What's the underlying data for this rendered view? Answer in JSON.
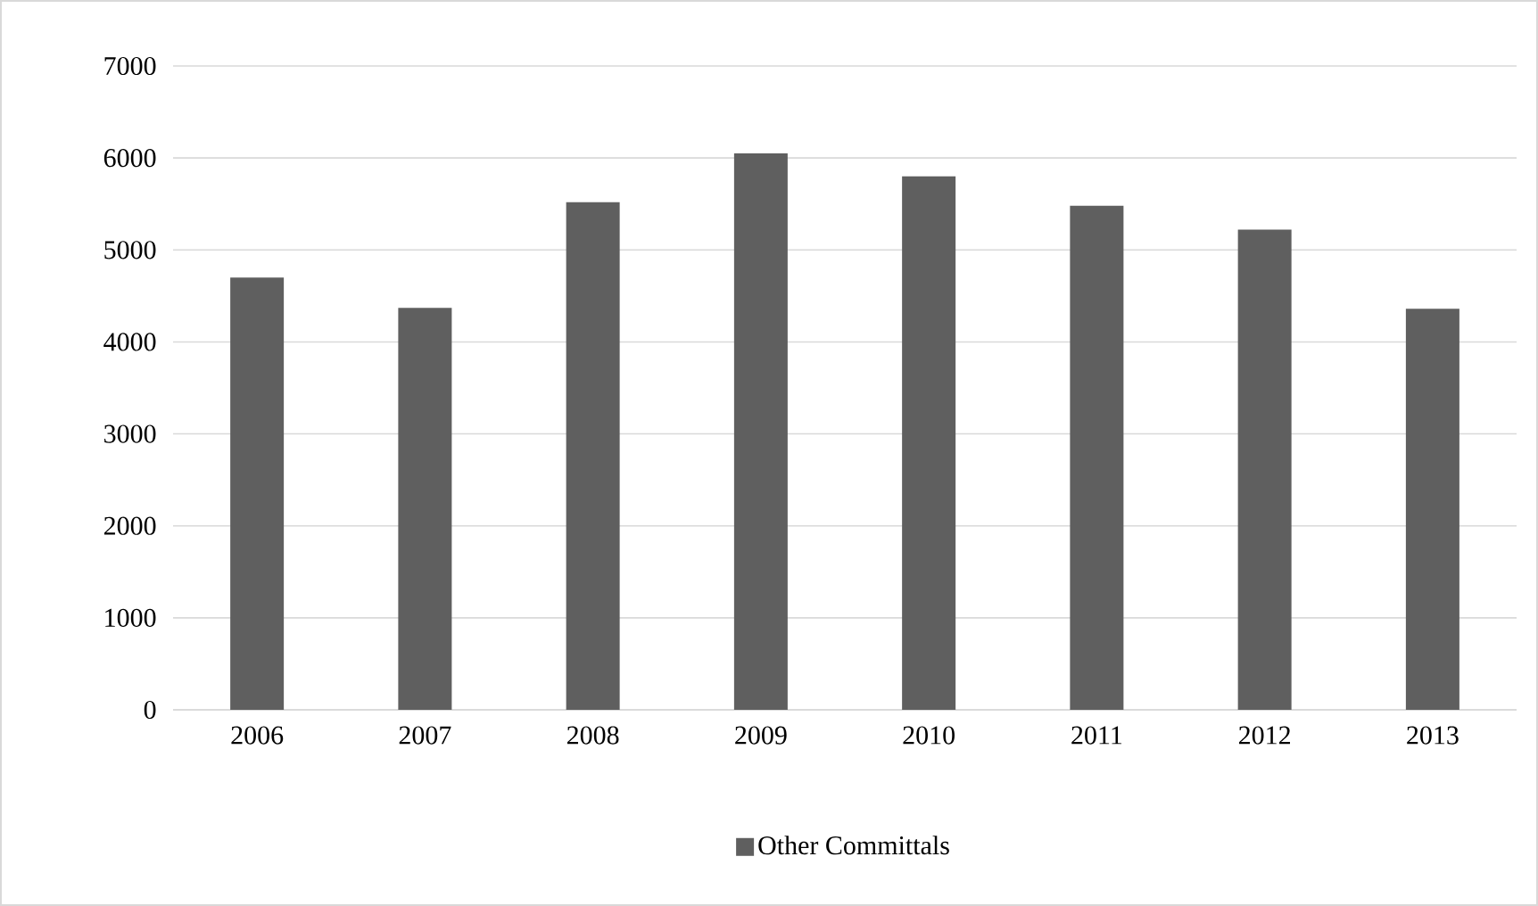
{
  "chart_data": {
    "type": "bar",
    "categories": [
      "2006",
      "2007",
      "2008",
      "2009",
      "2010",
      "2011",
      "2012",
      "2013"
    ],
    "series": [
      {
        "name": "Other Committals",
        "color": "#5f5f5f",
        "values": [
          4700,
          4370,
          5520,
          6050,
          5800,
          5480,
          5220,
          4360
        ]
      }
    ],
    "ylim": [
      0,
      7000
    ],
    "yticks": [
      0,
      1000,
      2000,
      3000,
      4000,
      5000,
      6000,
      7000
    ],
    "grid": "y",
    "legend": "bottom"
  }
}
